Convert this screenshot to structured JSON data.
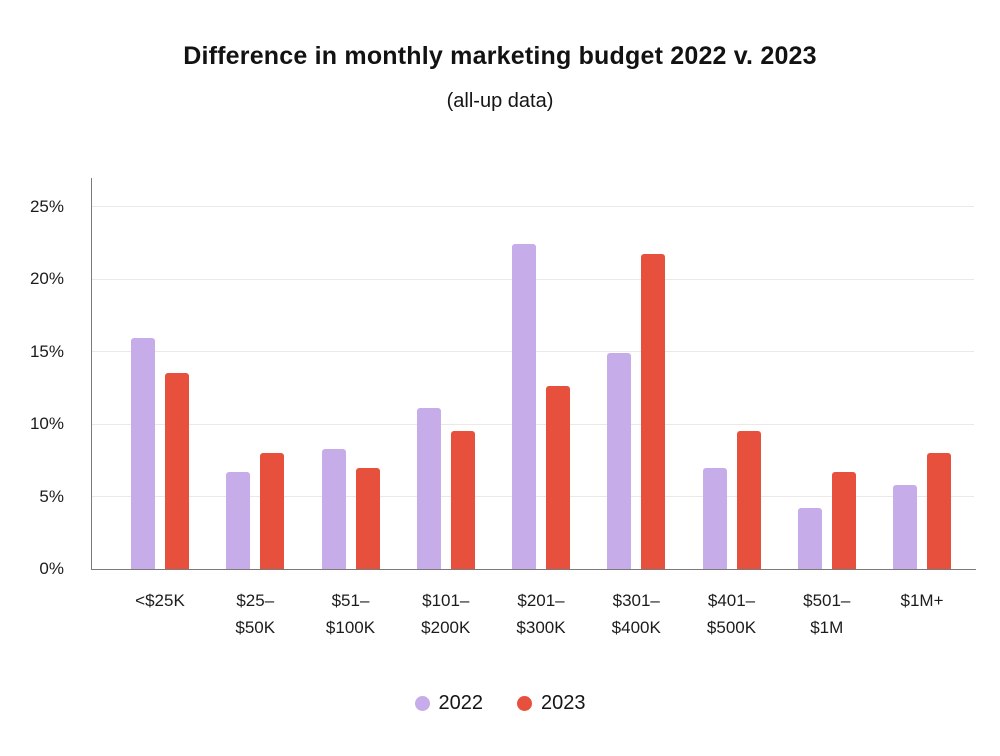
{
  "title": "Difference in monthly marketing budget 2022 v. 2023",
  "subtitle": "(all-up data)",
  "colors": {
    "series_2022": "#c6ade9",
    "series_2023": "#e7503c",
    "gridline": "#ece8e8",
    "axis": "#7a7a7a",
    "text": "#1b1b1b"
  },
  "chart_data": {
    "type": "bar",
    "title": "Difference in monthly marketing budget 2022 v. 2023",
    "subtitle": "(all-up data)",
    "categories": [
      "<$25K",
      "$25–\n$50K",
      "$51–\n$100K",
      "$101–\n$200K",
      "$201–\n$300K",
      "$301–\n$400K",
      "$401–\n$500K",
      "$501–\n$1M",
      "$1M+"
    ],
    "series": [
      {
        "name": "2022",
        "color": "#c6ade9",
        "values": [
          15.9,
          6.7,
          8.3,
          11.1,
          22.4,
          14.9,
          7.0,
          4.2,
          5.8
        ]
      },
      {
        "name": "2023",
        "color": "#e7503c",
        "values": [
          13.5,
          8.0,
          7.0,
          9.5,
          12.6,
          21.7,
          9.5,
          6.7,
          8.0
        ]
      }
    ],
    "yticks": [
      0,
      5,
      10,
      15,
      20,
      25
    ],
    "ytick_suffix": "%",
    "ylim": [
      0,
      27
    ],
    "xlabel": "",
    "ylabel": "",
    "grid": true,
    "legend_position": "bottom"
  }
}
